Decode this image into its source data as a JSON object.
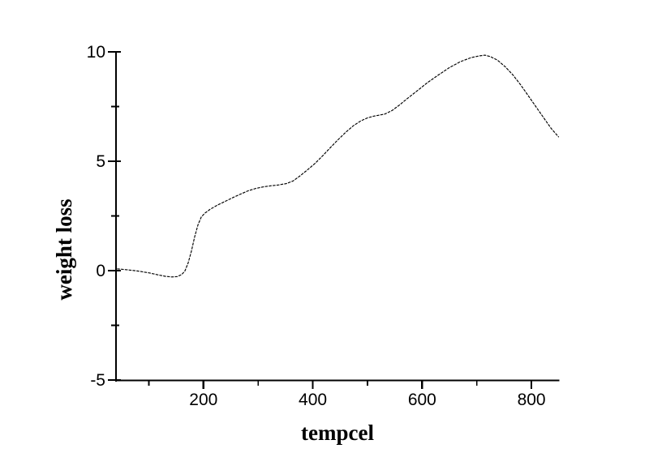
{
  "chart_data": {
    "type": "line",
    "title": "",
    "xlabel": "tempcel",
    "ylabel": "weight loss",
    "xlim": [
      40,
      850
    ],
    "ylim": [
      -5,
      10
    ],
    "grid": false,
    "legend_position": "none",
    "background_color": "#ffffff",
    "axis_color": "#000000",
    "line_color": "#000000",
    "x_major_ticks": [
      200,
      400,
      600,
      800
    ],
    "x_tick_labels": [
      "200",
      "400",
      "600",
      "800"
    ],
    "x_minor_ticks": [
      100,
      300,
      500,
      700
    ],
    "y_major_ticks": [
      10,
      5,
      0,
      -5
    ],
    "y_tick_labels": [
      "10",
      "5",
      "0",
      "-5"
    ],
    "y_minor_ticks": [
      7.5,
      2.5,
      -2.5
    ],
    "series": [
      {
        "x": [
          42,
          60,
          80,
          100,
          115,
          130,
          142,
          152,
          160,
          166,
          172,
          178,
          184,
          190,
          196,
          202,
          212,
          226,
          240,
          254,
          268,
          282,
          296,
          310,
          324,
          338,
          352,
          364,
          376,
          390,
          404,
          418,
          432,
          446,
          460,
          474,
          488,
          500,
          510,
          520,
          532,
          545,
          558,
          572,
          590,
          610,
          630,
          650,
          670,
          690,
          705,
          715,
          725,
          738,
          752,
          766,
          780,
          794,
          808,
          822,
          836,
          850
        ],
        "y": [
          0.08,
          0.04,
          -0.02,
          -0.1,
          -0.18,
          -0.26,
          -0.29,
          -0.27,
          -0.18,
          -0.02,
          0.35,
          0.9,
          1.55,
          2.1,
          2.45,
          2.62,
          2.8,
          3.0,
          3.17,
          3.34,
          3.5,
          3.65,
          3.76,
          3.83,
          3.88,
          3.92,
          3.98,
          4.1,
          4.32,
          4.6,
          4.9,
          5.25,
          5.62,
          5.98,
          6.32,
          6.62,
          6.85,
          6.98,
          7.05,
          7.1,
          7.16,
          7.32,
          7.56,
          7.85,
          8.2,
          8.6,
          8.95,
          9.28,
          9.55,
          9.74,
          9.82,
          9.85,
          9.78,
          9.62,
          9.32,
          8.95,
          8.5,
          8.0,
          7.5,
          7.0,
          6.5,
          6.1
        ]
      }
    ]
  }
}
